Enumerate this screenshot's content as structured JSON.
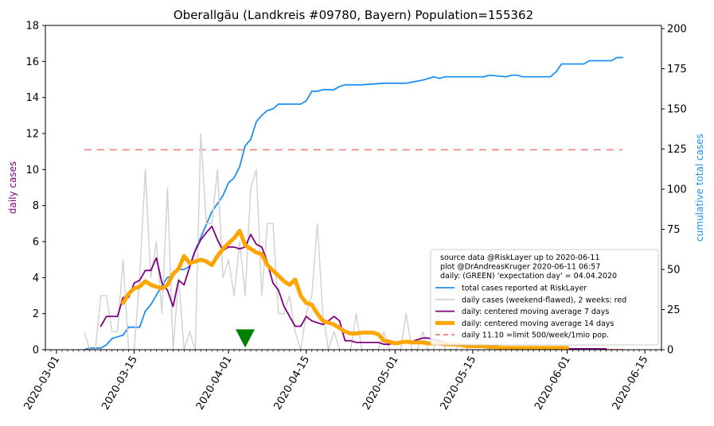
{
  "chart_data": {
    "type": "line",
    "title": "Oberallgäu (Landkreis #09780, Bayern) Population=155362",
    "ylabel_left": "daily cases",
    "ylabel_right": "cumulative total cases",
    "ylim_left": [
      0,
      18
    ],
    "ylim_right": [
      0,
      202
    ],
    "xlim": [
      "2020-02-28",
      "2020-06-18"
    ],
    "y_ticks_left": [
      0,
      2,
      4,
      6,
      8,
      10,
      12,
      14,
      16,
      18
    ],
    "y_ticks_right": [
      0,
      25,
      50,
      75,
      100,
      125,
      150,
      175,
      200
    ],
    "x_ticks": [
      "2020-03-01",
      "2020-03-15",
      "2020-04-01",
      "2020-04-15",
      "2020-05-01",
      "2020-05-15",
      "2020-06-01",
      "2020-06-15"
    ],
    "grid": false,
    "legend": {
      "placement": "lower-right",
      "header": [
        "source data @RiskLayer up to 2020-06-11",
        "plot @DrAndreasKruger 2020-06-11 06:57",
        "daily: (GREEN) 'expectation day' = 04.04.2020"
      ],
      "entries": [
        {
          "label": "total cases reported at RiskLayer",
          "color": "#1f8ff0",
          "style": "solid"
        },
        {
          "label": "daily cases (weekend-flawed), 2 weeks: red",
          "color": "#d3d3d3",
          "style": "solid"
        },
        {
          "label": "daily: centered moving average 7 days",
          "color": "#800080",
          "style": "solid"
        },
        {
          "label": "daily: centered moving average 14 days",
          "color": "#ffa500",
          "style": "thick"
        },
        {
          "label": "daily 11.10 =limit 500/week/1mio pop.",
          "color": "#f08080",
          "style": "dashed"
        }
      ]
    },
    "limit_line": {
      "value": 11.1,
      "color": "#f08080",
      "x_start": "2020-03-06",
      "x_end": "2020-06-11"
    },
    "expectation_day": {
      "date": "2020-04-04",
      "value": 0.6,
      "color": "#008000"
    },
    "series": [
      {
        "name": "total cases reported at RiskLayer",
        "axis": "right",
        "color": "#1f8ff0",
        "x": [
          "2020-03-06",
          "2020-03-07",
          "2020-03-08",
          "2020-03-09",
          "2020-03-10",
          "2020-03-11",
          "2020-03-12",
          "2020-03-13",
          "2020-03-14",
          "2020-03-15",
          "2020-03-16",
          "2020-03-17",
          "2020-03-18",
          "2020-03-19",
          "2020-03-20",
          "2020-03-21",
          "2020-03-22",
          "2020-03-23",
          "2020-03-24",
          "2020-03-25",
          "2020-03-26",
          "2020-03-27",
          "2020-03-28",
          "2020-03-29",
          "2020-03-30",
          "2020-03-31",
          "2020-04-01",
          "2020-04-02",
          "2020-04-03",
          "2020-04-04",
          "2020-04-05",
          "2020-04-06",
          "2020-04-07",
          "2020-04-08",
          "2020-04-09",
          "2020-04-10",
          "2020-04-11",
          "2020-04-12",
          "2020-04-13",
          "2020-04-14",
          "2020-04-15",
          "2020-04-16",
          "2020-04-17",
          "2020-04-18",
          "2020-04-19",
          "2020-04-20",
          "2020-04-21",
          "2020-04-22",
          "2020-04-25",
          "2020-04-29",
          "2020-05-03",
          "2020-05-06",
          "2020-05-07",
          "2020-05-08",
          "2020-05-09",
          "2020-05-10",
          "2020-05-17",
          "2020-05-18",
          "2020-05-21",
          "2020-05-22",
          "2020-05-23",
          "2020-05-24",
          "2020-05-29",
          "2020-05-30",
          "2020-05-31",
          "2020-06-04",
          "2020-06-05",
          "2020-06-09",
          "2020-06-10",
          "2020-06-11"
        ],
        "values": [
          0,
          1,
          1,
          1,
          3,
          7,
          8,
          9,
          14,
          14,
          14,
          24,
          28,
          34,
          40,
          45,
          46,
          50,
          50,
          52,
          62,
          70,
          78,
          86,
          91,
          96,
          104,
          107,
          114,
          127,
          131,
          142,
          146,
          149,
          150,
          153,
          153,
          153,
          153,
          153,
          155,
          161,
          161,
          162,
          162,
          162,
          164,
          165,
          165,
          166,
          166,
          168,
          169,
          170,
          169,
          170,
          170,
          171,
          170,
          171,
          171,
          170,
          170,
          173,
          178,
          178,
          180,
          180,
          182,
          182
        ]
      },
      {
        "name": "daily cases (weekend-flawed), 2 weeks: red",
        "axis": "left",
        "color": "#d3d3d3",
        "x": [
          "2020-03-06",
          "2020-03-07",
          "2020-03-08",
          "2020-03-09",
          "2020-03-10",
          "2020-03-11",
          "2020-03-12",
          "2020-03-13",
          "2020-03-14",
          "2020-03-15",
          "2020-03-16",
          "2020-03-17",
          "2020-03-18",
          "2020-03-19",
          "2020-03-20",
          "2020-03-21",
          "2020-03-22",
          "2020-03-23",
          "2020-03-24",
          "2020-03-25",
          "2020-03-26",
          "2020-03-27",
          "2020-03-28",
          "2020-03-29",
          "2020-03-30",
          "2020-03-31",
          "2020-04-01",
          "2020-04-02",
          "2020-04-03",
          "2020-04-04",
          "2020-04-05",
          "2020-04-06",
          "2020-04-07",
          "2020-04-08",
          "2020-04-09",
          "2020-04-10",
          "2020-04-11",
          "2020-04-12",
          "2020-04-13",
          "2020-04-14",
          "2020-04-15",
          "2020-04-16",
          "2020-04-17",
          "2020-04-18",
          "2020-04-19",
          "2020-04-20",
          "2020-04-21",
          "2020-04-22",
          "2020-04-23",
          "2020-04-24",
          "2020-04-25",
          "2020-04-26",
          "2020-04-27",
          "2020-04-28",
          "2020-04-29",
          "2020-04-30",
          "2020-05-01",
          "2020-05-02",
          "2020-05-03",
          "2020-05-04",
          "2020-05-05",
          "2020-05-06",
          "2020-05-07",
          "2020-05-08",
          "2020-05-09",
          "2020-05-10",
          "2020-05-11",
          "2020-05-12",
          "2020-05-13",
          "2020-05-14",
          "2020-05-15",
          "2020-05-16",
          "2020-05-17",
          "2020-05-18",
          "2020-05-19",
          "2020-05-20",
          "2020-05-21",
          "2020-05-22",
          "2020-05-23",
          "2020-05-24",
          "2020-05-25",
          "2020-05-26",
          "2020-05-27",
          "2020-05-28",
          "2020-05-29",
          "2020-05-30",
          "2020-05-31",
          "2020-06-01",
          "2020-06-02",
          "2020-06-03",
          "2020-06-04",
          "2020-06-05",
          "2020-06-06",
          "2020-06-07",
          "2020-06-08",
          "2020-06-09",
          "2020-06-10",
          "2020-06-11"
        ],
        "values": [
          1,
          0,
          0,
          3,
          3,
          1,
          1,
          5,
          0,
          0,
          4,
          10,
          4,
          6,
          2,
          9,
          0,
          4,
          0,
          1,
          0,
          12,
          7,
          7,
          10,
          4,
          5,
          3,
          6,
          3,
          9,
          10,
          3,
          7,
          7,
          2,
          2,
          3,
          1,
          0,
          2,
          3,
          7,
          2,
          0,
          1,
          0,
          0,
          0,
          2,
          0,
          0,
          0,
          0,
          1,
          0,
          0,
          0,
          2,
          0,
          0,
          1,
          0,
          0,
          2,
          0,
          0,
          0,
          1,
          0,
          0,
          0,
          0,
          0,
          0,
          0,
          0,
          0,
          0,
          0,
          0,
          0,
          0,
          0,
          0,
          0,
          0,
          0,
          0,
          0,
          0,
          0,
          0,
          0,
          0,
          0,
          0,
          0
        ],
        "red_segment_start": "2020-05-29"
      },
      {
        "name": "daily: centered moving average 7 days",
        "axis": "left",
        "color": "#800080",
        "x": [
          "2020-03-09",
          "2020-03-10",
          "2020-03-11",
          "2020-03-12",
          "2020-03-13",
          "2020-03-14",
          "2020-03-15",
          "2020-03-16",
          "2020-03-17",
          "2020-03-18",
          "2020-03-19",
          "2020-03-20",
          "2020-03-21",
          "2020-03-22",
          "2020-03-23",
          "2020-03-24",
          "2020-03-25",
          "2020-03-26",
          "2020-03-27",
          "2020-03-28",
          "2020-03-29",
          "2020-03-30",
          "2020-03-31",
          "2020-04-01",
          "2020-04-02",
          "2020-04-03",
          "2020-04-04",
          "2020-04-05",
          "2020-04-06",
          "2020-04-07",
          "2020-04-08",
          "2020-04-09",
          "2020-04-10",
          "2020-04-11",
          "2020-04-12",
          "2020-04-13",
          "2020-04-14",
          "2020-04-15",
          "2020-04-16",
          "2020-04-17",
          "2020-04-18",
          "2020-04-19",
          "2020-04-20",
          "2020-04-21",
          "2020-04-22",
          "2020-04-23",
          "2020-04-24",
          "2020-04-25",
          "2020-04-26",
          "2020-04-27",
          "2020-04-28",
          "2020-04-29",
          "2020-04-30",
          "2020-05-01",
          "2020-05-02",
          "2020-05-03",
          "2020-05-04",
          "2020-05-05",
          "2020-05-06",
          "2020-05-07",
          "2020-05-08",
          "2020-05-09",
          "2020-05-10",
          "2020-05-11",
          "2020-05-12",
          "2020-05-13",
          "2020-05-14",
          "2020-05-15",
          "2020-05-16",
          "2020-05-17",
          "2020-05-18",
          "2020-05-19",
          "2020-05-20",
          "2020-05-21",
          "2020-05-22",
          "2020-05-23",
          "2020-05-24",
          "2020-05-25",
          "2020-05-26",
          "2020-05-27",
          "2020-05-28",
          "2020-05-29",
          "2020-05-30",
          "2020-05-31",
          "2020-06-01",
          "2020-06-02",
          "2020-06-03",
          "2020-06-04",
          "2020-06-05",
          "2020-06-06",
          "2020-06-07",
          "2020-06-08"
        ],
        "values": [
          1.3,
          1.85,
          1.85,
          1.85,
          2.9,
          2.9,
          3.7,
          3.85,
          4.4,
          4.4,
          5.1,
          3.7,
          3.3,
          2.4,
          3.85,
          3.6,
          4.6,
          5.5,
          6.1,
          6.5,
          6.85,
          6.1,
          5.5,
          5.7,
          5.7,
          5.6,
          5.7,
          6.4,
          5.85,
          5.7,
          4.85,
          3.7,
          3.3,
          2.4,
          1.85,
          1.3,
          1.3,
          1.85,
          1.6,
          1.5,
          1.4,
          1.6,
          1.85,
          1.6,
          0.5,
          0.5,
          0.4,
          0.4,
          0.4,
          0.4,
          0.4,
          0.3,
          0.3,
          0.4,
          0.4,
          0.4,
          0.45,
          0.55,
          0.65,
          0.65,
          0.55,
          0.5,
          0.4,
          0.3,
          0.3,
          0.3,
          0.2,
          0.2,
          0.2,
          0.2,
          0.1,
          0.1,
          0.1,
          0.1,
          0.1,
          0.1,
          0.1,
          0.1,
          0.1,
          0.1,
          0.05,
          0.05,
          0.05,
          0.05,
          0.05,
          0.05,
          0.05,
          0.05,
          0.05,
          0.05,
          0.05,
          0.05
        ]
      },
      {
        "name": "daily: centered moving average 14 days",
        "axis": "left",
        "color": "#ffa500",
        "x": [
          "2020-03-13",
          "2020-03-14",
          "2020-03-15",
          "2020-03-16",
          "2020-03-17",
          "2020-03-18",
          "2020-03-19",
          "2020-03-20",
          "2020-03-21",
          "2020-03-22",
          "2020-03-23",
          "2020-03-24",
          "2020-03-25",
          "2020-03-26",
          "2020-03-27",
          "2020-03-28",
          "2020-03-29",
          "2020-03-30",
          "2020-03-31",
          "2020-04-01",
          "2020-04-02",
          "2020-04-03",
          "2020-04-04",
          "2020-04-05",
          "2020-04-06",
          "2020-04-07",
          "2020-04-08",
          "2020-04-09",
          "2020-04-10",
          "2020-04-11",
          "2020-04-12",
          "2020-04-13",
          "2020-04-14",
          "2020-04-15",
          "2020-04-16",
          "2020-04-17",
          "2020-04-18",
          "2020-04-19",
          "2020-04-20",
          "2020-04-21",
          "2020-04-22",
          "2020-04-23",
          "2020-04-24",
          "2020-04-25",
          "2020-04-26",
          "2020-04-27",
          "2020-04-28",
          "2020-04-29",
          "2020-04-30",
          "2020-05-01",
          "2020-05-02",
          "2020-05-03",
          "2020-05-04",
          "2020-05-05",
          "2020-05-06",
          "2020-05-07",
          "2020-05-08",
          "2020-05-09",
          "2020-05-10",
          "2020-05-11",
          "2020-05-12",
          "2020-05-13",
          "2020-05-14",
          "2020-05-15",
          "2020-05-16",
          "2020-05-17",
          "2020-05-18",
          "2020-05-19",
          "2020-05-20",
          "2020-05-21",
          "2020-05-22",
          "2020-05-23",
          "2020-05-24",
          "2020-05-25",
          "2020-05-26",
          "2020-05-27",
          "2020-05-28",
          "2020-05-29",
          "2020-05-30",
          "2020-05-31",
          "2020-06-01"
        ],
        "values": [
          2.6,
          3.1,
          3.4,
          3.5,
          3.8,
          3.6,
          3.5,
          3.4,
          3.6,
          4.2,
          4.5,
          5.2,
          4.8,
          4.9,
          5.0,
          4.9,
          4.7,
          5.2,
          5.6,
          5.9,
          6.2,
          6.6,
          5.8,
          5.6,
          5.4,
          5.3,
          4.7,
          4.4,
          4.1,
          3.8,
          3.6,
          3.9,
          3.0,
          2.6,
          2.5,
          2.0,
          1.6,
          1.5,
          1.4,
          1.2,
          1.0,
          0.9,
          0.9,
          0.95,
          0.95,
          0.95,
          0.85,
          0.5,
          0.45,
          0.35,
          0.4,
          0.45,
          0.4,
          0.4,
          0.4,
          0.35,
          0.35,
          0.35,
          0.3,
          0.3,
          0.3,
          0.25,
          0.2,
          0.2,
          0.2,
          0.2,
          0.15,
          0.15,
          0.1,
          0.1,
          0.1,
          0.1,
          0.1,
          0.1,
          0.1,
          0.1,
          0.1,
          0.1,
          0.1,
          0.1,
          0.1
        ]
      }
    ]
  }
}
